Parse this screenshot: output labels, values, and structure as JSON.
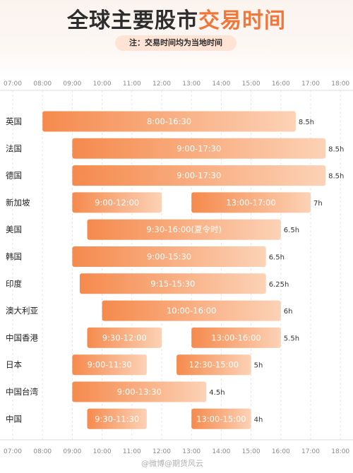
{
  "header": {
    "title_part1": "全球主要股市",
    "title_part2": "交易时间",
    "note": "注：交易时间均为当地时间"
  },
  "watermark": "@微博@期货风云",
  "colors": {
    "bar_start": "#f58a4d",
    "bar_end": "#fcd2b6",
    "accent": "#f0763a"
  },
  "chart_data": {
    "type": "bar",
    "orientation": "horizontal-range",
    "title": "全球主要股市交易时间",
    "x_ticks": [
      "07:00",
      "08:00",
      "09:00",
      "10:00",
      "11:00",
      "12:00",
      "13:00",
      "14:00",
      "15:00",
      "16:00",
      "17:00",
      "18:00"
    ],
    "xlim": [
      "07:00",
      "18:00"
    ],
    "grid": true,
    "rows": [
      {
        "market": "英国",
        "sessions": [
          {
            "start": "8:00",
            "end": "16:30",
            "label": "8:00-16:30"
          }
        ],
        "duration": "8.5h"
      },
      {
        "market": "法国",
        "sessions": [
          {
            "start": "9:00",
            "end": "17:30",
            "label": "9:00-17:30"
          }
        ],
        "duration": "8.5h"
      },
      {
        "market": "德国",
        "sessions": [
          {
            "start": "9:00",
            "end": "17:30",
            "label": "9:00-17:30"
          }
        ],
        "duration": "8.5h"
      },
      {
        "market": "新加坡",
        "sessions": [
          {
            "start": "9:00",
            "end": "12:00",
            "label": "9:00-12:00"
          },
          {
            "start": "13:00",
            "end": "17:00",
            "label": "13:00-17:00"
          }
        ],
        "duration": "7h"
      },
      {
        "market": "美国",
        "sessions": [
          {
            "start": "9:30",
            "end": "16:00",
            "label": "9:30-16:00(夏令时)"
          }
        ],
        "duration": "6.5h"
      },
      {
        "market": "韩国",
        "sessions": [
          {
            "start": "9:00",
            "end": "15:30",
            "label": "9:00-15:30"
          }
        ],
        "duration": "6.5h"
      },
      {
        "market": "印度",
        "sessions": [
          {
            "start": "9:15",
            "end": "15:30",
            "label": "9:15-15:30"
          }
        ],
        "duration": "6.25h"
      },
      {
        "market": "澳大利亚",
        "sessions": [
          {
            "start": "10:00",
            "end": "16:00",
            "label": "10:00-16:00"
          }
        ],
        "duration": "6h"
      },
      {
        "market": "中国香港",
        "sessions": [
          {
            "start": "9:30",
            "end": "12:00",
            "label": "9:30-12:00"
          },
          {
            "start": "13:00",
            "end": "16:00",
            "label": "13:00-16:00"
          }
        ],
        "duration": "5.5h"
      },
      {
        "market": "日本",
        "sessions": [
          {
            "start": "9:00",
            "end": "11:30",
            "label": "9:00-11:30"
          },
          {
            "start": "12:30",
            "end": "15:00",
            "label": "12:30-15:00"
          }
        ],
        "duration": "5h"
      },
      {
        "market": "中国台湾",
        "sessions": [
          {
            "start": "9:00",
            "end": "13:30",
            "label": "9:00-13:30"
          }
        ],
        "duration": "4.5h"
      },
      {
        "market": "中国",
        "sessions": [
          {
            "start": "9:30",
            "end": "11:30",
            "label": "9:30-11:30"
          },
          {
            "start": "13:00",
            "end": "15:00",
            "label": "13:00-15:00"
          }
        ],
        "duration": "4h"
      }
    ]
  }
}
